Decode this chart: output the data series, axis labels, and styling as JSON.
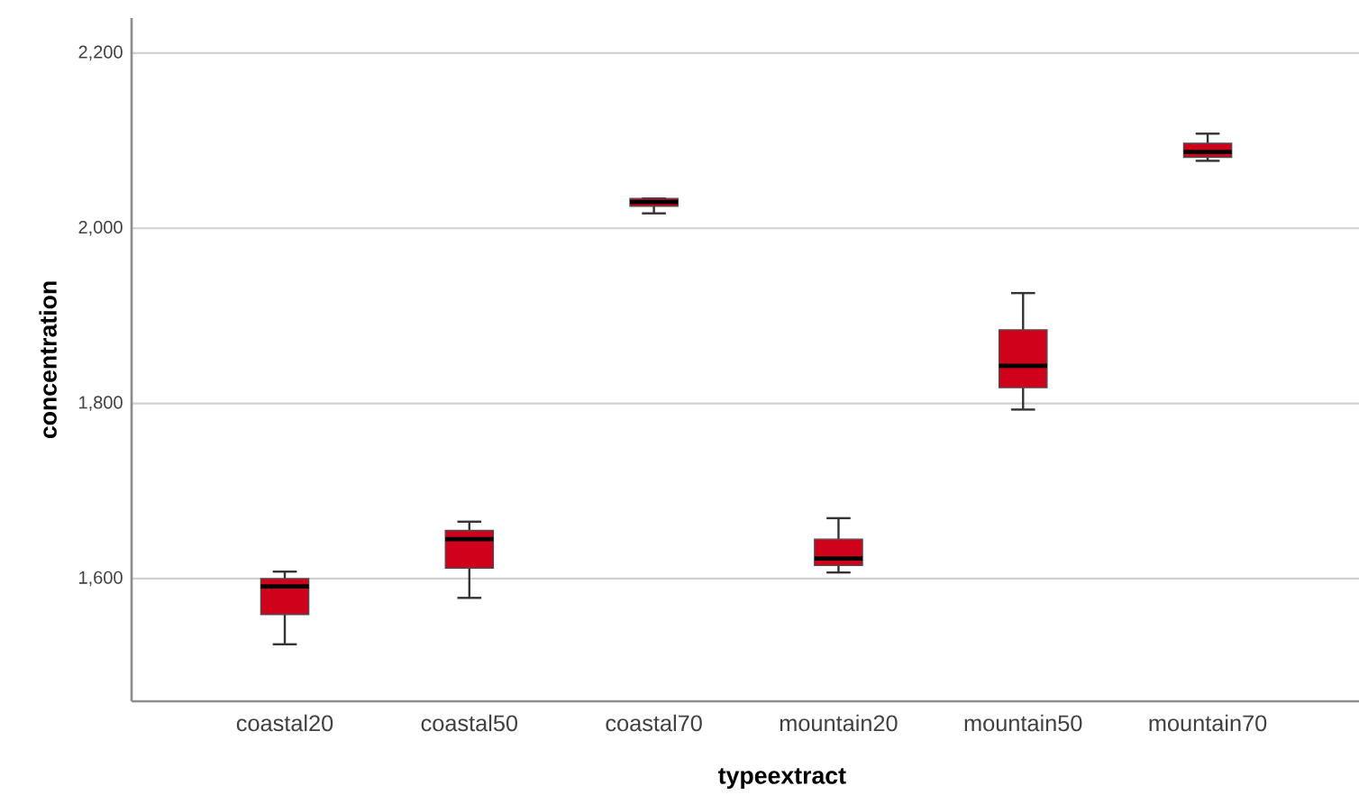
{
  "chart_data": {
    "type": "box",
    "xlabel": "typeextract",
    "ylabel": "concentration",
    "categories": [
      "coastal20",
      "coastal50",
      "coastal70",
      "mountain20",
      "mountain50",
      "mountain70"
    ],
    "boxes": [
      {
        "low": 1525,
        "q1": 1559,
        "median": 1591,
        "q3": 1600,
        "high": 1608
      },
      {
        "low": 1578,
        "q1": 1612,
        "median": 1645,
        "q3": 1655,
        "high": 1665
      },
      {
        "low": 2017,
        "q1": 2025,
        "median": 2030,
        "q3": 2034,
        "high": 2034
      },
      {
        "low": 1607,
        "q1": 1615,
        "median": 1623,
        "q3": 1645,
        "high": 1669
      },
      {
        "low": 1793,
        "q1": 1818,
        "median": 1843,
        "q3": 1884,
        "high": 1926
      },
      {
        "low": 2077,
        "q1": 2081,
        "median": 2087,
        "q3": 2097,
        "high": 2108
      }
    ],
    "color": "#d0021b",
    "ylim": [
      1460,
      2240
    ],
    "yticks": [
      {
        "value": 1600,
        "label": "1,600"
      },
      {
        "value": 1800,
        "label": "1,800"
      },
      {
        "value": 2000,
        "label": "2,000"
      },
      {
        "value": 2200,
        "label": "2,200"
      }
    ],
    "grid": "y"
  }
}
